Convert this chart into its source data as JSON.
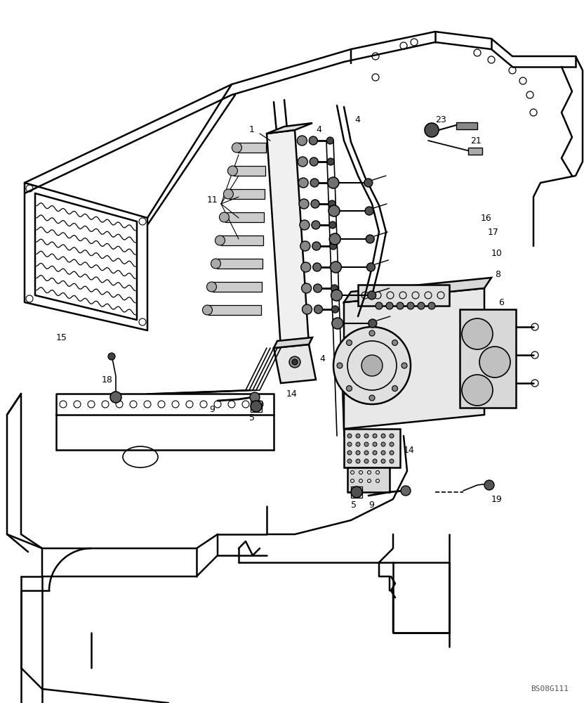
{
  "watermark": "BS08G111",
  "bg_color": "#ffffff",
  "line_color": "#000000",
  "figsize": [
    8.32,
    10.0
  ],
  "dpi": 100
}
